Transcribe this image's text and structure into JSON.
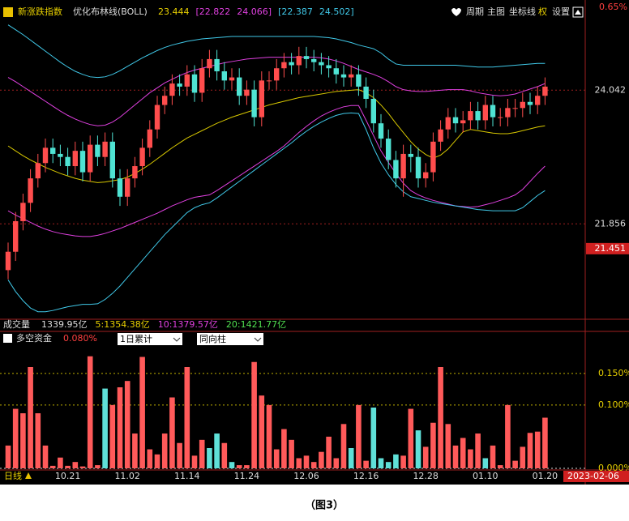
{
  "toolbar": [
    "周期",
    "主图",
    "坐标线",
    "权",
    "设置"
  ],
  "caption": "（图3）",
  "chart_data": [
    {
      "type": "candlestick",
      "title": "新涨跌指数",
      "subtitle": "优化布林线(BOLL)",
      "legend": [
        {
          "text": "23.444",
          "color": "#e8d000"
        },
        {
          "text": "[22.822",
          "color": "#e040e0"
        },
        {
          "text": "24.066]",
          "color": "#e040e0"
        },
        {
          "text": "[22.387",
          "color": "#40c8e8"
        },
        {
          "text": "24.502]",
          "color": "#40c8e8"
        }
      ],
      "corner_label": "0.65%",
      "up_color": "#ff4d4d",
      "down_color": "#4fe3d3",
      "ylim": [
        20.31,
        25.41
      ],
      "yticks": [
        21.856,
        24.042
      ],
      "grid": true,
      "last_price": 21.451,
      "open": [
        21.1,
        21.4,
        21.9,
        22.2,
        22.6,
        22.85,
        23.1,
        23.0,
        22.95,
        22.8,
        23.05,
        22.7,
        23.15,
        22.95,
        23.2,
        22.6,
        22.3,
        22.6,
        22.8,
        23.1,
        23.4,
        23.8,
        23.95,
        24.15,
        24.1,
        24.3,
        24.0,
        24.4,
        24.55,
        24.35,
        24.2,
        24.25,
        23.95,
        24.05,
        23.6,
        24.2,
        24.2,
        24.4,
        24.5,
        24.45,
        24.6,
        24.55,
        24.5,
        24.45,
        24.4,
        24.3,
        24.25,
        24.3,
        24.1,
        23.9,
        23.5,
        23.25,
        22.9,
        22.6,
        23.0,
        22.95,
        22.6,
        22.7,
        23.2,
        23.4,
        23.6,
        23.5,
        23.55,
        23.7,
        23.55,
        23.8,
        23.6,
        23.6,
        23.75,
        23.75,
        23.85,
        23.8,
        23.95
      ],
      "close": [
        21.4,
        21.9,
        22.2,
        22.6,
        22.85,
        23.1,
        23.0,
        22.95,
        22.8,
        23.05,
        22.7,
        23.15,
        22.95,
        23.2,
        22.6,
        22.3,
        22.6,
        22.8,
        23.1,
        23.4,
        23.8,
        23.95,
        24.15,
        24.1,
        24.3,
        24.0,
        24.4,
        24.55,
        24.35,
        24.2,
        24.25,
        23.95,
        24.05,
        23.6,
        24.2,
        24.2,
        24.4,
        24.5,
        24.45,
        24.6,
        24.55,
        24.5,
        24.45,
        24.4,
        24.3,
        24.25,
        24.3,
        24.1,
        23.9,
        23.5,
        23.25,
        22.9,
        22.6,
        23.0,
        22.95,
        22.6,
        22.7,
        23.2,
        23.4,
        23.6,
        23.5,
        23.55,
        23.7,
        23.55,
        23.8,
        23.6,
        23.6,
        23.75,
        23.75,
        23.85,
        23.8,
        23.95,
        24.1
      ],
      "high": [
        21.55,
        22.05,
        22.35,
        22.75,
        23.0,
        23.25,
        23.25,
        23.15,
        23.1,
        23.2,
        23.2,
        23.3,
        23.3,
        23.35,
        23.35,
        22.75,
        22.75,
        22.95,
        23.25,
        23.55,
        23.95,
        24.1,
        24.3,
        24.3,
        24.45,
        24.45,
        24.55,
        24.7,
        24.7,
        24.5,
        24.4,
        24.4,
        24.2,
        24.2,
        24.35,
        24.35,
        24.55,
        24.65,
        24.65,
        24.75,
        24.75,
        24.7,
        24.65,
        24.6,
        24.55,
        24.45,
        24.45,
        24.45,
        24.25,
        24.05,
        23.65,
        23.4,
        23.05,
        23.15,
        23.15,
        23.1,
        22.85,
        23.35,
        23.55,
        23.75,
        23.75,
        23.7,
        23.85,
        23.85,
        23.95,
        23.95,
        23.75,
        23.9,
        23.9,
        24.0,
        24.0,
        24.1,
        24.25
      ],
      "low": [
        20.95,
        21.25,
        21.75,
        22.05,
        22.45,
        22.7,
        22.85,
        22.8,
        22.65,
        22.65,
        22.55,
        22.55,
        22.8,
        22.8,
        22.45,
        22.15,
        22.15,
        22.45,
        22.65,
        22.95,
        23.25,
        23.65,
        23.8,
        23.95,
        23.95,
        23.85,
        23.85,
        24.25,
        24.2,
        24.05,
        24.05,
        23.8,
        23.8,
        23.45,
        23.45,
        24.05,
        24.05,
        24.25,
        24.3,
        24.3,
        24.4,
        24.35,
        24.3,
        24.25,
        24.15,
        24.1,
        24.1,
        23.95,
        23.75,
        23.35,
        23.1,
        22.75,
        22.45,
        22.3,
        22.7,
        22.45,
        22.45,
        22.55,
        23.05,
        23.25,
        23.35,
        23.35,
        23.4,
        23.4,
        23.4,
        23.45,
        23.45,
        23.45,
        23.6,
        23.6,
        23.65,
        23.65,
        23.8
      ],
      "series": [
        {
          "color": "#d8c800",
          "values": [
            23.13,
            23.05,
            22.97,
            22.9,
            22.84,
            22.78,
            22.73,
            22.68,
            22.64,
            22.6,
            22.57,
            22.55,
            22.53,
            22.54,
            22.56,
            22.58,
            22.62,
            22.68,
            22.75,
            22.83,
            22.92,
            23.01,
            23.1,
            23.18,
            23.26,
            23.32,
            23.38,
            23.44,
            23.5,
            23.55,
            23.6,
            23.64,
            23.68,
            23.72,
            23.76,
            23.8,
            23.83,
            23.86,
            23.89,
            23.92,
            23.94,
            23.96,
            23.98,
            24.0,
            24.02,
            24.03,
            24.04,
            24.05,
            24.0,
            23.92,
            23.8,
            23.66,
            23.5,
            23.35,
            23.2,
            23.08,
            22.99,
            22.93,
            22.98,
            23.08,
            23.22,
            23.36,
            23.4,
            23.38,
            23.36,
            23.34,
            23.33,
            23.33,
            23.35,
            23.38,
            23.41,
            23.44,
            23.46
          ]
        },
        {
          "color": "#e040e0",
          "values": [
            24.25,
            24.18,
            24.1,
            24.02,
            23.94,
            23.86,
            23.78,
            23.7,
            23.63,
            23.57,
            23.52,
            23.48,
            23.46,
            23.47,
            23.52,
            23.6,
            23.7,
            23.8,
            23.9,
            24.0,
            24.08,
            24.16,
            24.22,
            24.28,
            24.33,
            24.37,
            24.4,
            24.43,
            24.46,
            24.49,
            24.51,
            24.53,
            24.55,
            24.56,
            24.57,
            24.58,
            24.58,
            24.58,
            24.58,
            24.58,
            24.58,
            24.58,
            24.57,
            24.55,
            24.52,
            24.48,
            24.43,
            24.38,
            24.34,
            24.3,
            24.25,
            24.18,
            24.1,
            24.05,
            24.03,
            24.02,
            24.02,
            24.03,
            24.04,
            24.05,
            24.05,
            24.05,
            24.03,
            24.0,
            23.98,
            23.96,
            23.95,
            23.96,
            23.98,
            24.02,
            24.06,
            24.1,
            24.15
          ]
        },
        {
          "color": "#e040e0",
          "values": [
            22.07,
            22.0,
            21.94,
            21.88,
            21.82,
            21.77,
            21.73,
            21.7,
            21.68,
            21.66,
            21.65,
            21.65,
            21.67,
            21.7,
            21.74,
            21.78,
            21.83,
            21.88,
            21.93,
            21.98,
            22.03,
            22.09,
            22.15,
            22.2,
            22.25,
            22.29,
            22.31,
            22.33,
            22.4,
            22.48,
            22.56,
            22.64,
            22.72,
            22.8,
            22.88,
            22.96,
            23.04,
            23.13,
            23.24,
            23.35,
            23.45,
            23.54,
            23.62,
            23.68,
            23.73,
            23.77,
            23.79,
            23.79,
            23.55,
            23.3,
            23.05,
            22.86,
            22.68,
            22.52,
            22.4,
            22.33,
            22.28,
            22.24,
            22.21,
            22.18,
            22.15,
            22.14,
            22.13,
            22.14,
            22.17,
            22.2,
            22.24,
            22.28,
            22.33,
            22.42,
            22.55,
            22.68,
            22.8
          ]
        },
        {
          "color": "#40c8e8",
          "values": [
            25.11,
            25.03,
            24.95,
            24.86,
            24.77,
            24.68,
            24.59,
            24.5,
            24.42,
            24.35,
            24.3,
            24.26,
            24.25,
            24.26,
            24.3,
            24.36,
            24.43,
            24.5,
            24.57,
            24.63,
            24.69,
            24.74,
            24.78,
            24.81,
            24.84,
            24.86,
            24.88,
            24.89,
            24.9,
            24.91,
            24.92,
            24.92,
            24.92,
            24.92,
            24.92,
            24.92,
            24.92,
            24.92,
            24.92,
            24.92,
            24.92,
            24.92,
            24.91,
            24.9,
            24.88,
            24.85,
            24.82,
            24.78,
            24.75,
            24.72,
            24.65,
            24.55,
            24.47,
            24.45,
            24.45,
            24.45,
            24.45,
            24.45,
            24.45,
            24.45,
            24.45,
            24.44,
            24.43,
            24.42,
            24.42,
            24.42,
            24.43,
            24.44,
            24.45,
            24.46,
            24.47,
            24.48,
            24.48
          ]
        },
        {
          "color": "#40c8e8",
          "values": [
            20.94,
            20.75,
            20.6,
            20.48,
            20.42,
            20.42,
            20.44,
            20.47,
            20.5,
            20.52,
            20.54,
            20.54,
            20.55,
            20.62,
            20.72,
            20.84,
            20.98,
            21.12,
            21.26,
            21.4,
            21.54,
            21.68,
            21.8,
            21.92,
            22.04,
            22.12,
            22.17,
            22.2,
            22.28,
            22.37,
            22.46,
            22.55,
            22.64,
            22.73,
            22.82,
            22.91,
            23.0,
            23.09,
            23.18,
            23.28,
            23.37,
            23.45,
            23.52,
            23.58,
            23.63,
            23.66,
            23.67,
            23.66,
            23.4,
            23.1,
            22.85,
            22.66,
            22.5,
            22.38,
            22.3,
            22.27,
            22.24,
            22.21,
            22.19,
            22.17,
            22.15,
            22.13,
            22.11,
            22.09,
            22.08,
            22.07,
            22.07,
            22.07,
            22.07,
            22.12,
            22.22,
            22.32,
            22.4
          ]
        }
      ],
      "volume_texts": [
        {
          "text": "成交量",
          "color": "#dddddd"
        },
        {
          "text": "1339.95亿",
          "color": "#dddddd"
        },
        {
          "text": "5:1354.38亿",
          "color": "#e8d000"
        },
        {
          "text": "10:1379.57亿",
          "color": "#e040e0"
        },
        {
          "text": "20:1421.77亿",
          "color": "#50e050"
        }
      ]
    },
    {
      "type": "bar",
      "title": "多空资金",
      "current": "0.080%",
      "controls": [
        "1日累计",
        "同向柱"
      ],
      "period": "日线",
      "date": "2023-02-06",
      "ylim": [
        0,
        0.192
      ],
      "yticks": [
        {
          "value": 0,
          "label": "0.000%"
        },
        {
          "value": 0.1,
          "label": "0.100%"
        },
        {
          "value": 0.15,
          "label": "0.150%"
        }
      ],
      "grid": true,
      "categories": [
        null,
        null,
        null,
        null,
        null,
        null,
        null,
        null,
        "10.21",
        null,
        null,
        null,
        null,
        null,
        null,
        null,
        "11.02",
        null,
        null,
        null,
        null,
        null,
        null,
        null,
        "11.14",
        null,
        null,
        null,
        null,
        null,
        null,
        null,
        "11.24",
        null,
        null,
        null,
        null,
        null,
        null,
        null,
        "12.06",
        null,
        null,
        null,
        null,
        null,
        null,
        null,
        "12.16",
        null,
        null,
        null,
        null,
        null,
        null,
        null,
        "12.28",
        null,
        null,
        null,
        null,
        null,
        null,
        null,
        "01.10",
        null,
        null,
        null,
        null,
        null,
        null,
        null,
        "01.20"
      ],
      "values": [
        0.036,
        0.094,
        0.087,
        0.16,
        0.087,
        0.036,
        0.004,
        0.017,
        0.004,
        0.01,
        0.003,
        0.177,
        0.005,
        0.126,
        0.1,
        0.128,
        0.138,
        0.055,
        0.176,
        0.03,
        0.022,
        0.055,
        0.112,
        0.04,
        0.16,
        0.02,
        0.045,
        0.032,
        0.055,
        0.04,
        0.01,
        0.005,
        0.005,
        0.168,
        0.115,
        0.1,
        0.03,
        0.062,
        0.045,
        0.016,
        0.02,
        0.01,
        0.026,
        0.05,
        0.016,
        0.07,
        0.032,
        0.1,
        0.012,
        0.096,
        0.016,
        0.01,
        0.022,
        0.02,
        0.094,
        0.06,
        0.034,
        0.072,
        0.16,
        0.07,
        0.036,
        0.048,
        0.03,
        0.055,
        0.016,
        0.036,
        0.005,
        0.1,
        0.012,
        0.034,
        0.056,
        0.058,
        0.08
      ],
      "colors": [
        "#ff5a5a",
        "#ff5a5a",
        "#ff5a5a",
        "#ff5a5a",
        "#ff5a5a",
        "#ff5a5a",
        "#ff5a5a",
        "#ff5a5a",
        "#ff5a5a",
        "#ff5a5a",
        "#ff5a5a",
        "#ff5a5a",
        "#ff5a5a",
        "#5fe0d8",
        "#ff5a5a",
        "#ff5a5a",
        "#ff5a5a",
        "#ff5a5a",
        "#ff5a5a",
        "#ff5a5a",
        "#ff5a5a",
        "#ff5a5a",
        "#ff5a5a",
        "#ff5a5a",
        "#ff5a5a",
        "#ff5a5a",
        "#ff5a5a",
        "#5fe0d8",
        "#5fe0d8",
        "#ff5a5a",
        "#5fe0d8",
        "#ff5a5a",
        "#ff5a5a",
        "#ff5a5a",
        "#ff5a5a",
        "#ff5a5a",
        "#ff5a5a",
        "#ff5a5a",
        "#ff5a5a",
        "#ff5a5a",
        "#ff5a5a",
        "#ff5a5a",
        "#ff5a5a",
        "#ff5a5a",
        "#ff5a5a",
        "#ff5a5a",
        "#5fe0d8",
        "#ff5a5a",
        "#ff5a5a",
        "#5fe0d8",
        "#5fe0d8",
        "#5fe0d8",
        "#5fe0d8",
        "#ff5a5a",
        "#ff5a5a",
        "#5fe0d8",
        "#ff5a5a",
        "#ff5a5a",
        "#ff5a5a",
        "#ff5a5a",
        "#ff5a5a",
        "#ff5a5a",
        "#ff5a5a",
        "#ff5a5a",
        "#5fe0d8",
        "#ff5a5a",
        "#ff5a5a",
        "#ff5a5a",
        "#ff5a5a",
        "#ff5a5a",
        "#ff5a5a",
        "#ff5a5a",
        "#ff5a5a"
      ]
    }
  ]
}
